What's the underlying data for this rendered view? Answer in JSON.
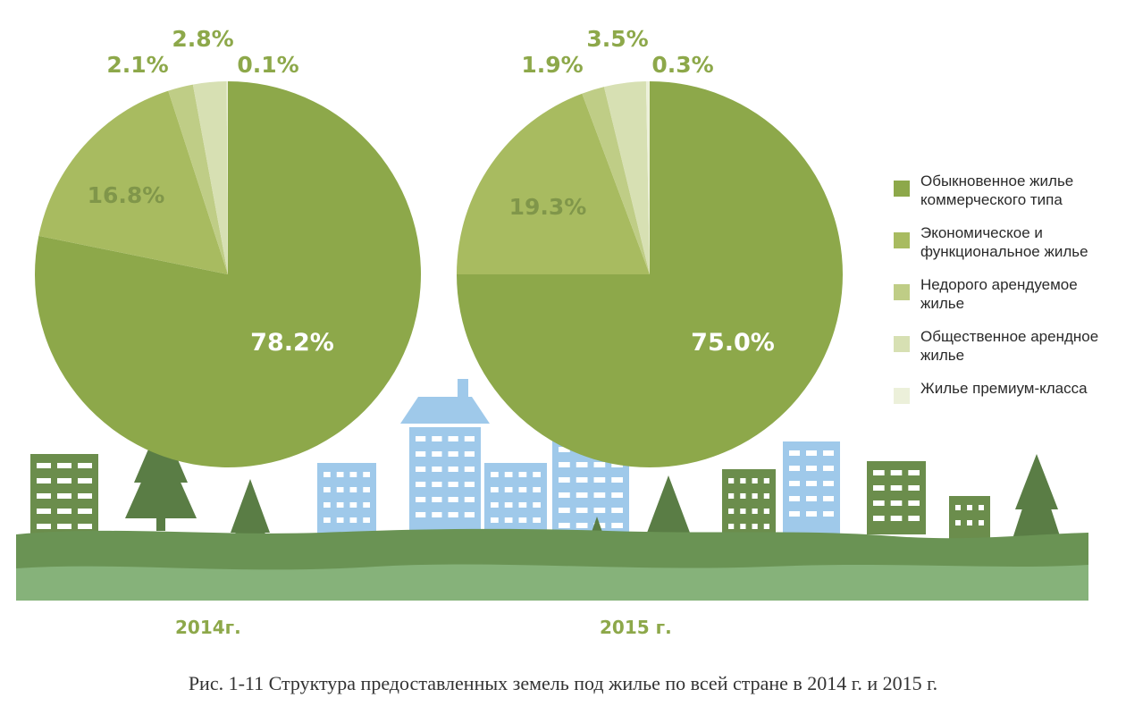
{
  "chart_data": [
    {
      "type": "pie",
      "title": "2014г.",
      "categories": [
        "Обыкновенное жилье коммерческого типа",
        "Экономическое и функциональное жилье",
        "Недорого арендуемое жилье",
        "Общественное арендное жилье",
        "Жилье премиум-класса"
      ],
      "values": [
        78.2,
        16.8,
        2.1,
        2.8,
        0.1
      ],
      "labels": [
        "78.2%",
        "16.8%",
        "2.1%",
        "2.8%",
        "0.1%"
      ]
    },
    {
      "type": "pie",
      "title": "2015 г.",
      "categories": [
        "Обыкновенное жилье коммерческого типа",
        "Экономическое и функциональное жилье",
        "Недорого арендуемое жилье",
        "Общественное арендное жилье",
        "Жилье премиум-класса"
      ],
      "values": [
        75.0,
        19.3,
        1.9,
        3.5,
        0.3
      ],
      "labels": [
        "75.0%",
        "19.3%",
        "1.9%",
        "3.5%",
        "0.3%"
      ]
    }
  ],
  "legend": {
    "items": [
      {
        "label": "Обыкновенное жилье коммерческого типа",
        "color": "#8da84a"
      },
      {
        "label": "Экономическое и функциональное жилье",
        "color": "#a8bb60"
      },
      {
        "label": "Недорого арендуемое жилье",
        "color": "#bfcd86"
      },
      {
        "label": "Общественное арендное жилье",
        "color": "#d7e0b3"
      },
      {
        "label": "Жилье премиум-класса",
        "color": "#ecf0da"
      }
    ]
  },
  "years": {
    "left": "2014г.",
    "right": "2015 г."
  },
  "caption": "Рис. 1-11 Структура предоставленных земель под жилье по всей стране в 2014 г. и 2015 г.",
  "colors": {
    "label_green": "#8da84a",
    "building_green": "#6b8d4c",
    "building_blue": "#9fc9ea",
    "tree_green": "#5a7d45",
    "ground_dark": "#6a9354",
    "ground_light": "#86b27a"
  }
}
